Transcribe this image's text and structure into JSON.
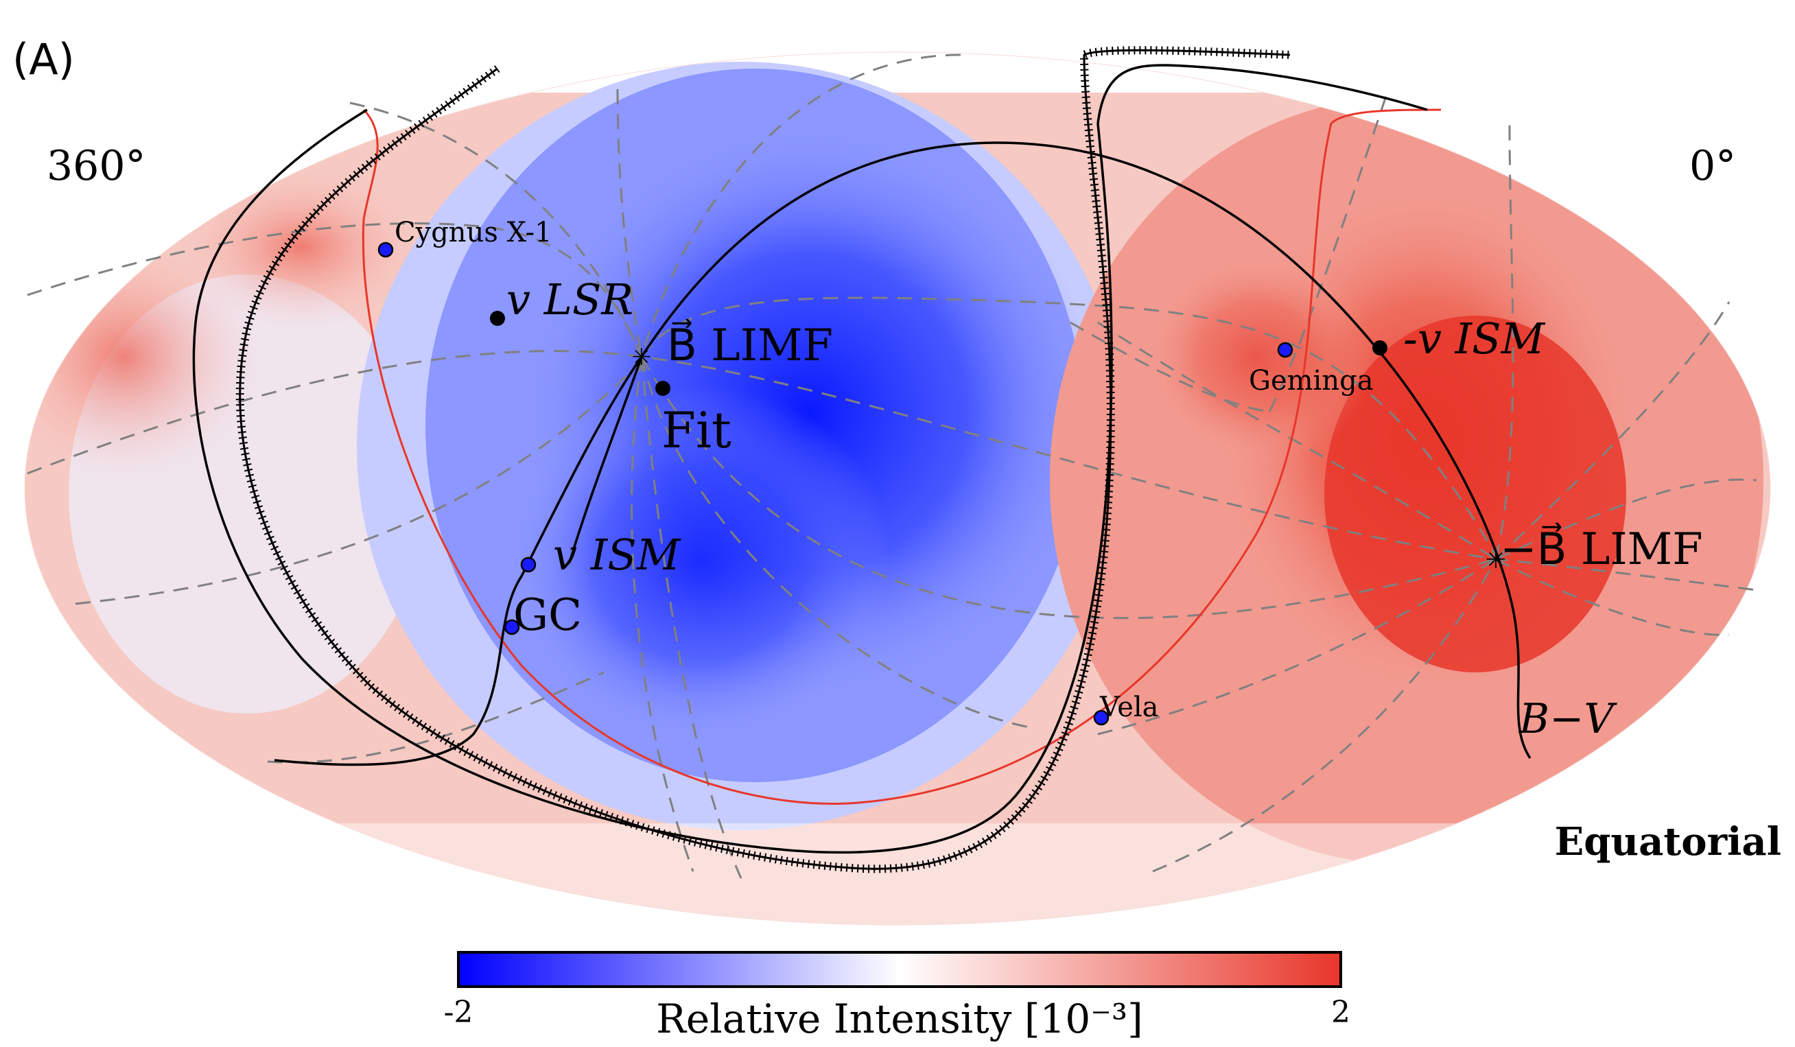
{
  "panel_label": "(A)",
  "frame_label": "Equatorial",
  "ra_left_label": "360°",
  "ra_right_label": "0°",
  "colorbar": {
    "label": "Relative Intensity [10⁻³]",
    "min_label": "-2",
    "max_label": "2",
    "min_color": "#0000ff",
    "mid_color": "#ffffff",
    "max_color": "#e8362a"
  },
  "markers": [
    {
      "label": "Cygnus X-1",
      "color": "#1a1aff"
    },
    {
      "label": "Geminga",
      "color": "#1a1aff"
    },
    {
      "label": "Vela",
      "color": "#1a1aff"
    },
    {
      "label": "GC",
      "color": "#1a1aff"
    },
    {
      "label": "v_ISM",
      "color": "#1a1aff"
    },
    {
      "label": "v_LSR",
      "color": "#000000"
    },
    {
      "label": "-v_ISM",
      "color": "#000000"
    },
    {
      "label": "Fit",
      "color": "#000000"
    }
  ],
  "annotations": {
    "b_limf": "B⃗ LIMF",
    "neg_b_limf": "−B⃗ LIMF",
    "b_minus_v": "B−V",
    "v_lsr": "v LSR",
    "v_ism": "v ISM",
    "neg_v_ism": "-v ISM",
    "fit": "Fit",
    "gc": "GC"
  },
  "colors": {
    "red_line": "#e8362a",
    "grid": "#808080",
    "circle": "#000000"
  }
}
